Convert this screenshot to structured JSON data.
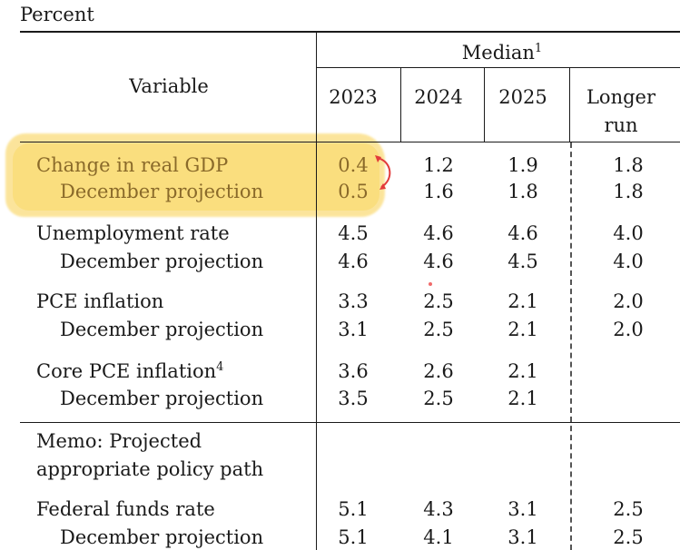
{
  "unit": "Percent",
  "header": {
    "variable": "Variable",
    "median": "Median",
    "median_note": "1",
    "years": [
      "2023",
      "2024",
      "2025"
    ],
    "longer_run_1": "Longer",
    "longer_run_2": "run"
  },
  "rows": [
    {
      "label": "Change in real GDP",
      "note": "",
      "values": [
        "0.4",
        "1.2",
        "1.9",
        "1.8"
      ]
    },
    {
      "label": "December projection",
      "note": "",
      "values": [
        "0.5",
        "1.6",
        "1.8",
        "1.8"
      ]
    },
    {
      "label": "Unemployment rate",
      "note": "",
      "values": [
        "4.5",
        "4.6",
        "4.6",
        "4.0"
      ]
    },
    {
      "label": "December projection",
      "note": "",
      "values": [
        "4.6",
        "4.6",
        "4.5",
        "4.0"
      ]
    },
    {
      "label": "PCE inflation",
      "note": "",
      "values": [
        "3.3",
        "2.5",
        "2.1",
        "2.0"
      ]
    },
    {
      "label": "December projection",
      "note": "",
      "values": [
        "3.1",
        "2.5",
        "2.1",
        "2.0"
      ]
    },
    {
      "label": "Core PCE inflation",
      "note": "4",
      "values": [
        "3.6",
        "2.6",
        "2.1",
        ""
      ]
    },
    {
      "label": "December projection",
      "note": "",
      "values": [
        "3.5",
        "2.5",
        "2.1",
        ""
      ]
    },
    {
      "label": "Federal funds rate",
      "note": "",
      "values": [
        "5.1",
        "4.3",
        "3.1",
        "2.5"
      ]
    },
    {
      "label": "December projection",
      "note": "",
      "values": [
        "5.1",
        "4.1",
        "3.1",
        "2.5"
      ]
    }
  ],
  "memo": {
    "line1": "Memo: Projected",
    "line2": "appropriate policy path"
  },
  "colors": {
    "highlight": "#fbe08a",
    "annotation_arrow": "#e23b3b"
  }
}
